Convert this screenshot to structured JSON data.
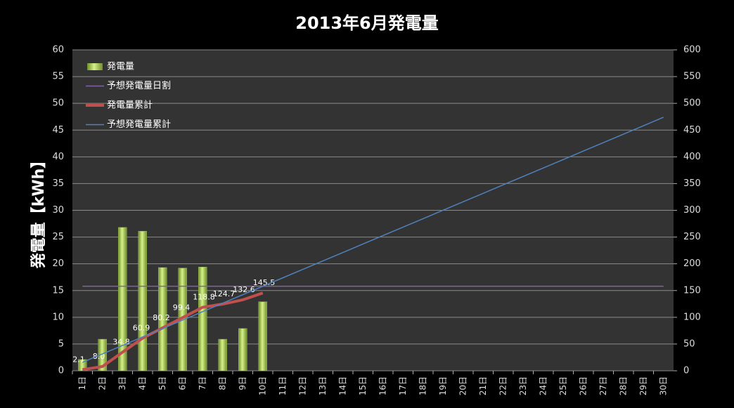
{
  "chart_data": {
    "type": "combo",
    "title": "2013年6月発電量",
    "y_label": "発電量【kWh】",
    "categories": [
      "1日",
      "2日",
      "3日",
      "4日",
      "5日",
      "6日",
      "7日",
      "8日",
      "9日",
      "10日",
      "11日",
      "12日",
      "13日",
      "14日",
      "15日",
      "16日",
      "17日",
      "18日",
      "19日",
      "20日",
      "21日",
      "22日",
      "23日",
      "24日",
      "25日",
      "26日",
      "27日",
      "28日",
      "29日",
      "30日"
    ],
    "ylim": [
      0,
      60
    ],
    "yticks": [
      0,
      5,
      10,
      15,
      20,
      25,
      30,
      35,
      40,
      45,
      50,
      55,
      60
    ],
    "y2lim": [
      0,
      600
    ],
    "y2ticks": [
      0,
      50,
      100,
      150,
      200,
      250,
      300,
      350,
      400,
      450,
      500,
      550,
      600
    ],
    "grid": true,
    "legend": "upper left",
    "series": [
      {
        "name": "発電量",
        "type": "bar",
        "color": "#9bbb59",
        "axis": "y",
        "values": [
          2.1,
          5.9,
          26.8,
          26.1,
          19.3,
          19.2,
          19.4,
          5.9,
          7.9,
          12.9,
          null,
          null,
          null,
          null,
          null,
          null,
          null,
          null,
          null,
          null,
          null,
          null,
          null,
          null,
          null,
          null,
          null,
          null,
          null,
          null
        ]
      },
      {
        "name": "予想発電量日割",
        "type": "line",
        "color": "#8064a2",
        "axis": "y",
        "values": [
          15.8,
          15.8,
          15.8,
          15.8,
          15.8,
          15.8,
          15.8,
          15.8,
          15.8,
          15.8,
          15.8,
          15.8,
          15.8,
          15.8,
          15.8,
          15.8,
          15.8,
          15.8,
          15.8,
          15.8,
          15.8,
          15.8,
          15.8,
          15.8,
          15.8,
          15.8,
          15.8,
          15.8,
          15.8,
          15.8
        ]
      },
      {
        "name": "発電量累計",
        "type": "line",
        "color": "#c0504d",
        "axis": "y2",
        "values": [
          2.1,
          8.0,
          34.8,
          60.9,
          80.2,
          99.4,
          118.8,
          124.7,
          132.6,
          145.5,
          null,
          null,
          null,
          null,
          null,
          null,
          null,
          null,
          null,
          null,
          null,
          null,
          null,
          null,
          null,
          null,
          null,
          null,
          null,
          null
        ],
        "value_labels": [
          "2.1",
          "8.0",
          "34.8",
          "60.9",
          "80.2",
          "99.4",
          "118.8",
          "124.7",
          "132.6",
          "145.5",
          null,
          null,
          null,
          null,
          null,
          null,
          null,
          null,
          null,
          null,
          null,
          null,
          null,
          null,
          null,
          null,
          null,
          null,
          null,
          null
        ]
      },
      {
        "name": "予想発電量累計",
        "type": "line",
        "color": "#4f81bd",
        "axis": "y2",
        "values": [
          15.8,
          31.6,
          47.4,
          63.2,
          79.0,
          94.8,
          110.6,
          126.4,
          142.2,
          158.0,
          173.8,
          189.6,
          205.4,
          221.2,
          237.0,
          252.8,
          268.6,
          284.4,
          300.2,
          316.0,
          331.8,
          347.6,
          363.4,
          379.2,
          395.0,
          410.8,
          426.6,
          442.4,
          458.2,
          474.0
        ]
      }
    ]
  }
}
